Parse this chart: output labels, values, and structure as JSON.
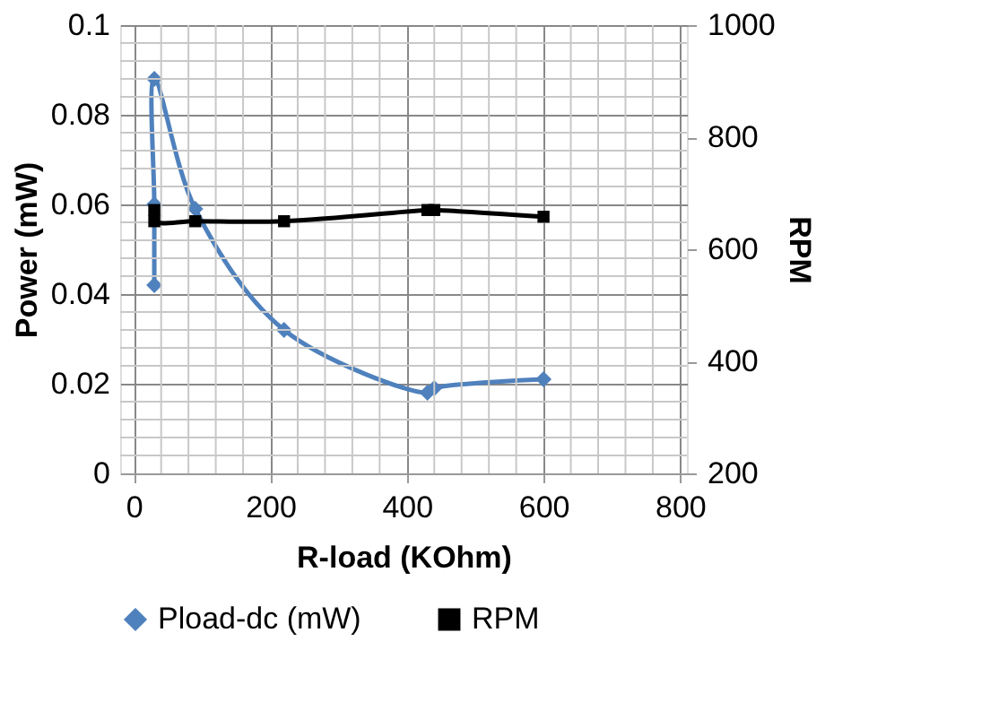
{
  "chart_data": {
    "type": "line",
    "xlabel": "R-load (KOhm)",
    "ylabel": "Power (mW)",
    "y2label": "RPM",
    "xlim": [
      -20,
      810
    ],
    "xticks": [
      0,
      200,
      400,
      600,
      800
    ],
    "ylim": [
      0,
      0.1
    ],
    "yticks": [
      0,
      0.02,
      0.04,
      0.06,
      0.08,
      0.1
    ],
    "y2lim": [
      200,
      1000
    ],
    "y2ticks": [
      200,
      400,
      600,
      800,
      1000
    ],
    "grid": true,
    "legend": "bottom",
    "series": [
      {
        "name": "Pload-dc (mW)",
        "color": "#4f81bd",
        "marker": "diamond",
        "x": [
          30,
          30,
          30,
          90,
          220,
          430,
          440,
          600
        ],
        "values": [
          0.042,
          0.06,
          0.088,
          0.059,
          0.032,
          0.018,
          0.019,
          0.021
        ]
      },
      {
        "name": "RPM",
        "color": "#000000",
        "marker": "square",
        "axis": "y2",
        "x": [
          30,
          30,
          90,
          220,
          430,
          440,
          600
        ],
        "values": [
          670,
          650,
          650,
          650,
          670,
          670,
          658
        ]
      }
    ]
  }
}
